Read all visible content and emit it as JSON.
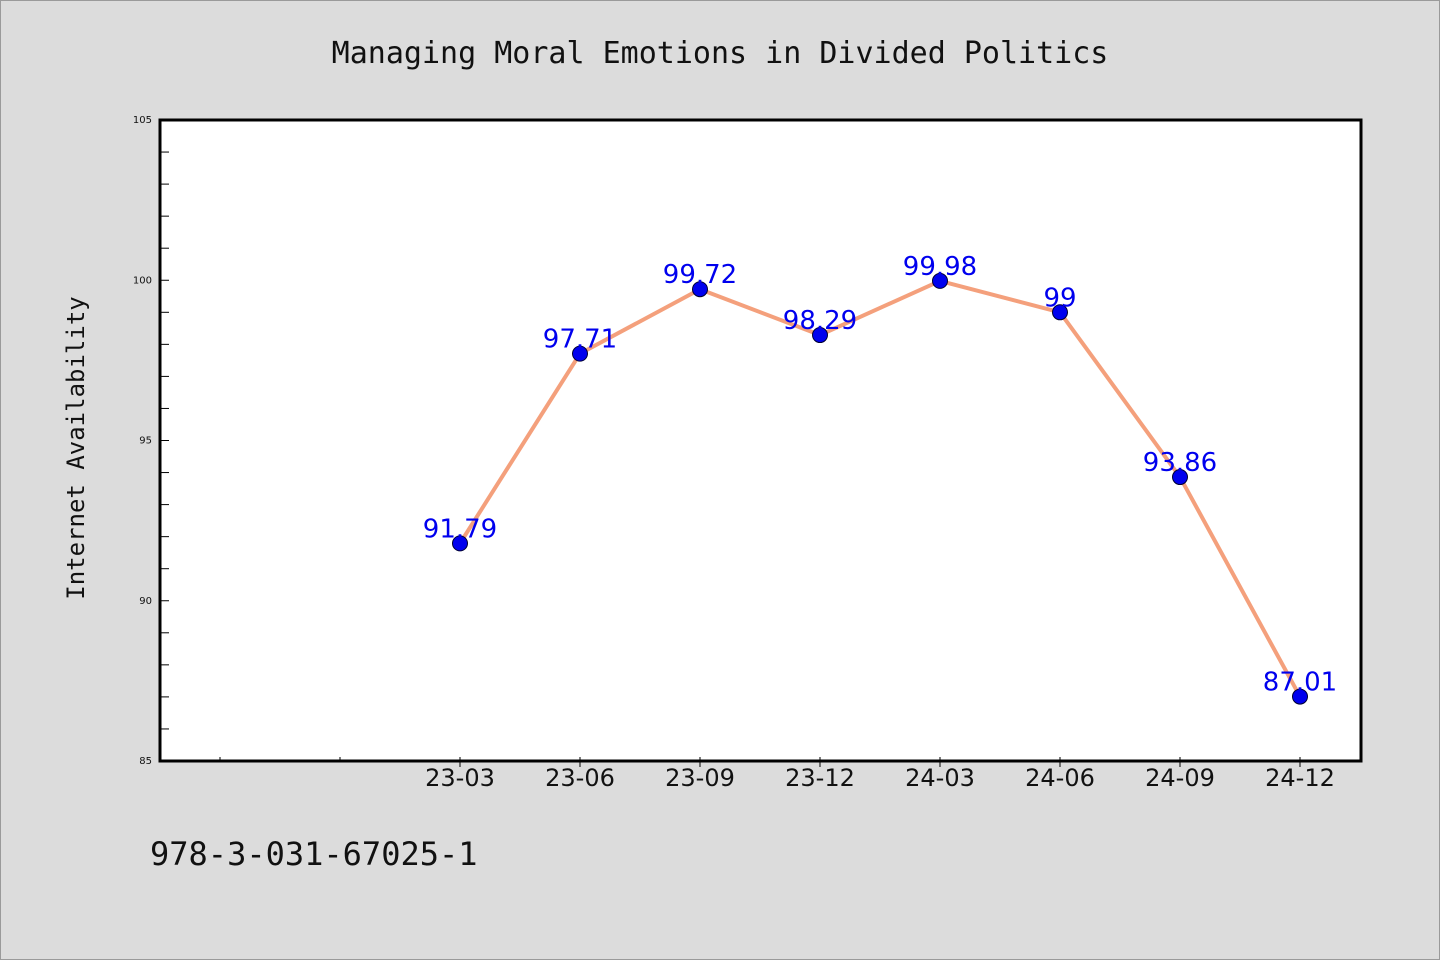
{
  "chart_data": {
    "type": "line",
    "title": "Managing Moral Emotions in Divided Politics",
    "xlabel": "",
    "ylabel": "Internet Availability",
    "categories": [
      "23-03",
      "23-06",
      "23-09",
      "23-12",
      "24-03",
      "24-06",
      "24-09",
      "24-12"
    ],
    "series": [
      {
        "values": [
          91.79,
          97.71,
          99.72,
          98.29,
          99.98,
          99,
          93.86,
          87.01
        ],
        "labels": [
          "91.79",
          "97.71",
          "99.72",
          "98.29",
          "99.98",
          "99",
          "93.86",
          "87.01"
        ]
      }
    ],
    "ylim": [
      85,
      105
    ],
    "yticks": [
      "85",
      "90",
      "95",
      "100",
      "105"
    ],
    "grid": false,
    "line_color": "#f4a07c",
    "marker_color": "#0000ee",
    "label_color": "#0000ee"
  },
  "footer": {
    "isbn": "978-3-031-67025-1"
  }
}
